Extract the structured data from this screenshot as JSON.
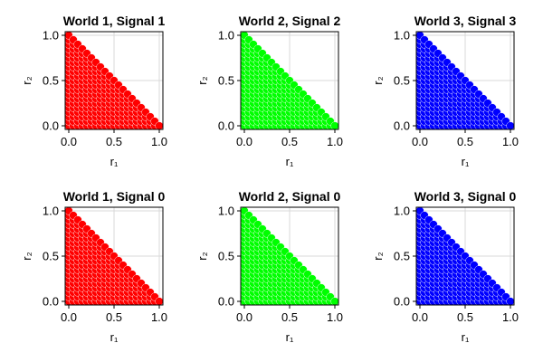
{
  "chart_data": [
    {
      "type": "scatter",
      "title": "World 1, Signal 1",
      "xlabel": "r₁",
      "ylabel": "r₂",
      "color": "#ff0000",
      "xlim": [
        0,
        1
      ],
      "ylim": [
        0,
        1
      ],
      "xticks": [
        "0.0",
        "0.5",
        "1.0"
      ],
      "yticks": [
        "0.0",
        "0.5",
        "1.0"
      ],
      "grid": true,
      "points": "all grid points (x, y) with x + y <= 1, step 0.05"
    },
    {
      "type": "scatter",
      "title": "World 2, Signal 2",
      "xlabel": "r₁",
      "ylabel": "r₂",
      "color": "#00ff00",
      "xlim": [
        0,
        1
      ],
      "ylim": [
        0,
        1
      ],
      "xticks": [
        "0.0",
        "0.5",
        "1.0"
      ],
      "yticks": [
        "0.0",
        "0.5",
        "1.0"
      ],
      "grid": true,
      "points": "all grid points (x, y) with x + y <= 1, step 0.05"
    },
    {
      "type": "scatter",
      "title": "World 3, Signal 3",
      "xlabel": "r₁",
      "ylabel": "r₂",
      "color": "#0000ff",
      "xlim": [
        0,
        1
      ],
      "ylim": [
        0,
        1
      ],
      "xticks": [
        "0.0",
        "0.5",
        "1.0"
      ],
      "yticks": [
        "0.0",
        "0.5",
        "1.0"
      ],
      "grid": true,
      "points": "all grid points (x, y) with x + y <= 1, step 0.05"
    },
    {
      "type": "scatter",
      "title": "World 1, Signal 0",
      "xlabel": "r₁",
      "ylabel": "r₂",
      "color": "#ff0000",
      "xlim": [
        0,
        1
      ],
      "ylim": [
        0,
        1
      ],
      "xticks": [
        "0.0",
        "0.5",
        "1.0"
      ],
      "yticks": [
        "0.0",
        "0.5",
        "1.0"
      ],
      "grid": true,
      "points": "all grid points (x, y) with x + y <= 1, step 0.05"
    },
    {
      "type": "scatter",
      "title": "World 2, Signal 0",
      "xlabel": "r₁",
      "ylabel": "r₂",
      "color": "#00ff00",
      "xlim": [
        0,
        1
      ],
      "ylim": [
        0,
        1
      ],
      "xticks": [
        "0.0",
        "0.5",
        "1.0"
      ],
      "yticks": [
        "0.0",
        "0.5",
        "1.0"
      ],
      "grid": true,
      "points": "all grid points (x, y) with x + y <= 1, step 0.05"
    },
    {
      "type": "scatter",
      "title": "World 3, Signal 0",
      "xlabel": "r₁",
      "ylabel": "r₂",
      "color": "#0000ff",
      "xlim": [
        0,
        1
      ],
      "ylim": [
        0,
        1
      ],
      "xticks": [
        "0.0",
        "0.5",
        "1.0"
      ],
      "yticks": [
        "0.0",
        "0.5",
        "1.0"
      ],
      "grid": true,
      "points": "all grid points (x, y) with x + y <= 1, step 0.05"
    }
  ]
}
